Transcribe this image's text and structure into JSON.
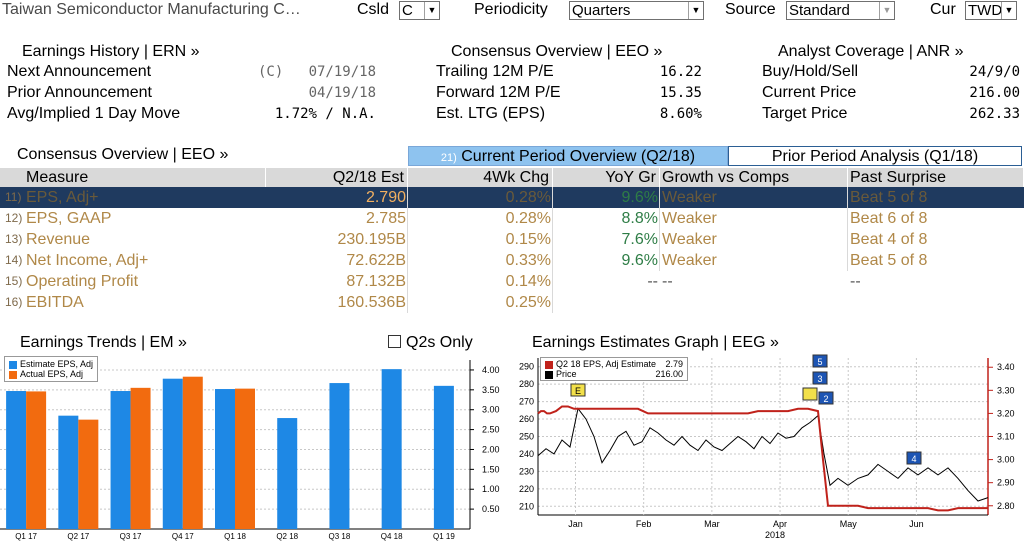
{
  "header": {
    "security": "Taiwan Semiconductor Manufacturing C…",
    "csld_label": "Csld",
    "csld_value": "C",
    "periodicity_label": "Periodicity",
    "periodicity_value": "Quarters",
    "source_label": "Source",
    "source_value": "Standard",
    "cur_label": "Cur",
    "cur_value": "TWD"
  },
  "earnings_history": {
    "title": "Earnings History | ERN »",
    "rows": [
      {
        "label": "Next Announcement",
        "prefix": "(C)",
        "value": "07/19/18"
      },
      {
        "label": "Prior Announcement",
        "prefix": "",
        "value": "04/19/18"
      },
      {
        "label": "Avg/Implied 1 Day Move",
        "prefix": "",
        "value": "1.72% / N.A."
      }
    ]
  },
  "consensus_top": {
    "title": "Consensus Overview | EEO »",
    "rows": [
      {
        "label": "Trailing 12M P/E",
        "value": "16.22"
      },
      {
        "label": "Forward 12M P/E",
        "value": "15.35"
      },
      {
        "label": "Est. LTG (EPS)",
        "value": "8.60%"
      }
    ]
  },
  "analyst": {
    "title": "Analyst Coverage | ANR »",
    "rows": [
      {
        "label": "Buy/Hold/Sell",
        "value": "24/9/0"
      },
      {
        "label": "Current Price",
        "value": "216.00"
      },
      {
        "label": "Target Price",
        "value": "262.33"
      }
    ]
  },
  "tabs": {
    "section_title": "Consensus Overview | EEO »",
    "current_num": "21)",
    "current": "Current Period Overview (Q2/18)",
    "prior": "Prior Period Analysis (Q1/18)"
  },
  "table": {
    "headers": [
      "Measure",
      "Q2/18 Est",
      "4Wk Chg",
      "YoY Gr",
      "Growth vs Comps",
      "Past Surprise"
    ],
    "rows": [
      {
        "num": "11)",
        "measure": "EPS, Adj+",
        "est": "2.790",
        "chg": "0.28%",
        "yoy": "9.6%",
        "growth": "Weaker",
        "surprise": "Beat 5 of 8"
      },
      {
        "num": "12)",
        "measure": "EPS, GAAP",
        "est": "2.785",
        "chg": "0.28%",
        "yoy": "8.8%",
        "growth": "Weaker",
        "surprise": "Beat 6 of 8"
      },
      {
        "num": "13)",
        "measure": "Revenue",
        "est": "230.195B",
        "chg": "0.15%",
        "yoy": "7.6%",
        "growth": "Weaker",
        "surprise": "Beat 4 of 8"
      },
      {
        "num": "14)",
        "measure": "Net Income, Adj+",
        "est": "72.622B",
        "chg": "0.33%",
        "yoy": "9.6%",
        "growth": "Weaker",
        "surprise": "Beat 5 of 8"
      },
      {
        "num": "15)",
        "measure": "Operating Profit",
        "est": "87.132B",
        "chg": "0.14%",
        "yoy": "--",
        "growth": "--",
        "surprise": "--"
      },
      {
        "num": "16)",
        "measure": "EBITDA",
        "est": "160.536B",
        "chg": "0.25%",
        "yoy": "",
        "growth": "",
        "surprise": ""
      }
    ]
  },
  "earnings_trends": {
    "title": "Earnings Trends | EM »",
    "q2s_only": "Q2s Only",
    "legend": [
      "Estimate EPS, Adj",
      "Actual EPS, Adj"
    ],
    "colors": {
      "estimate": "#1e88e5",
      "actual": "#f26b0f"
    }
  },
  "estimates_graph": {
    "title": "Earnings Estimates Graph | EEG »",
    "legend": [
      {
        "label": "Q2 18 EPS, Adj Estimate",
        "value": "2.79"
      },
      {
        "label": "Price",
        "value": "216.00"
      }
    ],
    "year_label": "2018",
    "markers": [
      "E",
      "5",
      "3",
      "2",
      "4"
    ]
  },
  "chart_data": [
    {
      "type": "bar",
      "categories": [
        "Q1 17",
        "Q2 17",
        "Q3 17",
        "Q4 17",
        "Q1 18",
        "Q2 18",
        "Q3 18",
        "Q4 18",
        "Q1 19"
      ],
      "series": [
        {
          "name": "Estimate EPS, Adj",
          "values": [
            3.47,
            2.85,
            3.47,
            3.78,
            3.52,
            2.79,
            3.67,
            4.02,
            3.6
          ]
        },
        {
          "name": "Actual EPS, Adj",
          "values": [
            3.46,
            2.75,
            3.55,
            3.83,
            3.53,
            null,
            null,
            null,
            null
          ]
        }
      ],
      "yticks": [
        "0.50",
        "1.00",
        "1.50",
        "2.00",
        "2.50",
        "3.00",
        "3.50",
        "4.00"
      ],
      "ylim": [
        0,
        4.25
      ]
    },
    {
      "type": "line",
      "x_labels": [
        "Jan",
        "Feb",
        "Mar",
        "Apr",
        "May",
        "Jun"
      ],
      "left_yticks": [
        "210",
        "220",
        "230",
        "240",
        "250",
        "260",
        "270",
        "280",
        "290"
      ],
      "right_yticks": [
        "2.80",
        "2.90",
        "3.00",
        "3.10",
        "3.20",
        "3.30",
        "3.40"
      ],
      "left_ylim": [
        205,
        295
      ],
      "right_ylim": [
        2.76,
        3.44
      ],
      "series": [
        {
          "name": "Q2 18 EPS, Adj Estimate",
          "axis": "right",
          "x": [
            0,
            3,
            6,
            9,
            12,
            18,
            24,
            30,
            36,
            42,
            48,
            56,
            64,
            72,
            80,
            88,
            92,
            95,
            97,
            98,
            100,
            110,
            120,
            130,
            140,
            150,
            160,
            170,
            180,
            190,
            200,
            210,
            220,
            230,
            240,
            250,
            260,
            270,
            280,
            285,
            290,
            300,
            310,
            320,
            330,
            340,
            350,
            360,
            370,
            380,
            390,
            400,
            410,
            420,
            430,
            440,
            450
          ],
          "values": [
            3.2,
            3.21,
            3.21,
            3.2,
            3.2,
            3.21,
            3.23,
            3.23,
            3.22,
            3.22,
            3.22,
            3.22,
            3.22,
            3.22,
            3.22,
            3.22,
            3.22,
            3.22,
            3.22,
            3.22,
            3.22,
            3.2,
            3.2,
            3.2,
            3.2,
            3.2,
            3.2,
            3.2,
            3.2,
            3.2,
            3.2,
            3.2,
            3.21,
            3.21,
            3.21,
            3.21,
            3.22,
            3.22,
            3.21,
            3.0,
            2.8,
            2.8,
            2.8,
            2.8,
            2.79,
            2.79,
            2.79,
            2.79,
            2.79,
            2.79,
            2.79,
            2.78,
            2.78,
            2.79,
            2.79,
            2.79,
            2.79
          ]
        },
        {
          "name": "Price",
          "axis": "left",
          "x": [
            0,
            8,
            16,
            24,
            32,
            40,
            48,
            56,
            64,
            72,
            80,
            88,
            96,
            104,
            112,
            120,
            128,
            136,
            144,
            152,
            160,
            168,
            176,
            184,
            192,
            200,
            208,
            216,
            224,
            232,
            240,
            248,
            256,
            264,
            272,
            280,
            286,
            292,
            300,
            310,
            320,
            330,
            340,
            350,
            360,
            370,
            380,
            390,
            400,
            410,
            420,
            430,
            440,
            450
          ],
          "values": [
            239,
            243,
            240,
            248,
            244,
            266,
            260,
            250,
            235,
            242,
            250,
            253,
            245,
            247,
            255,
            252,
            248,
            245,
            250,
            245,
            242,
            248,
            244,
            242,
            246,
            250,
            247,
            243,
            250,
            246,
            252,
            249,
            250,
            255,
            258,
            262,
            240,
            222,
            226,
            222,
            226,
            228,
            234,
            230,
            226,
            232,
            228,
            232,
            228,
            232,
            226,
            219,
            213,
            215
          ]
        }
      ]
    }
  ]
}
